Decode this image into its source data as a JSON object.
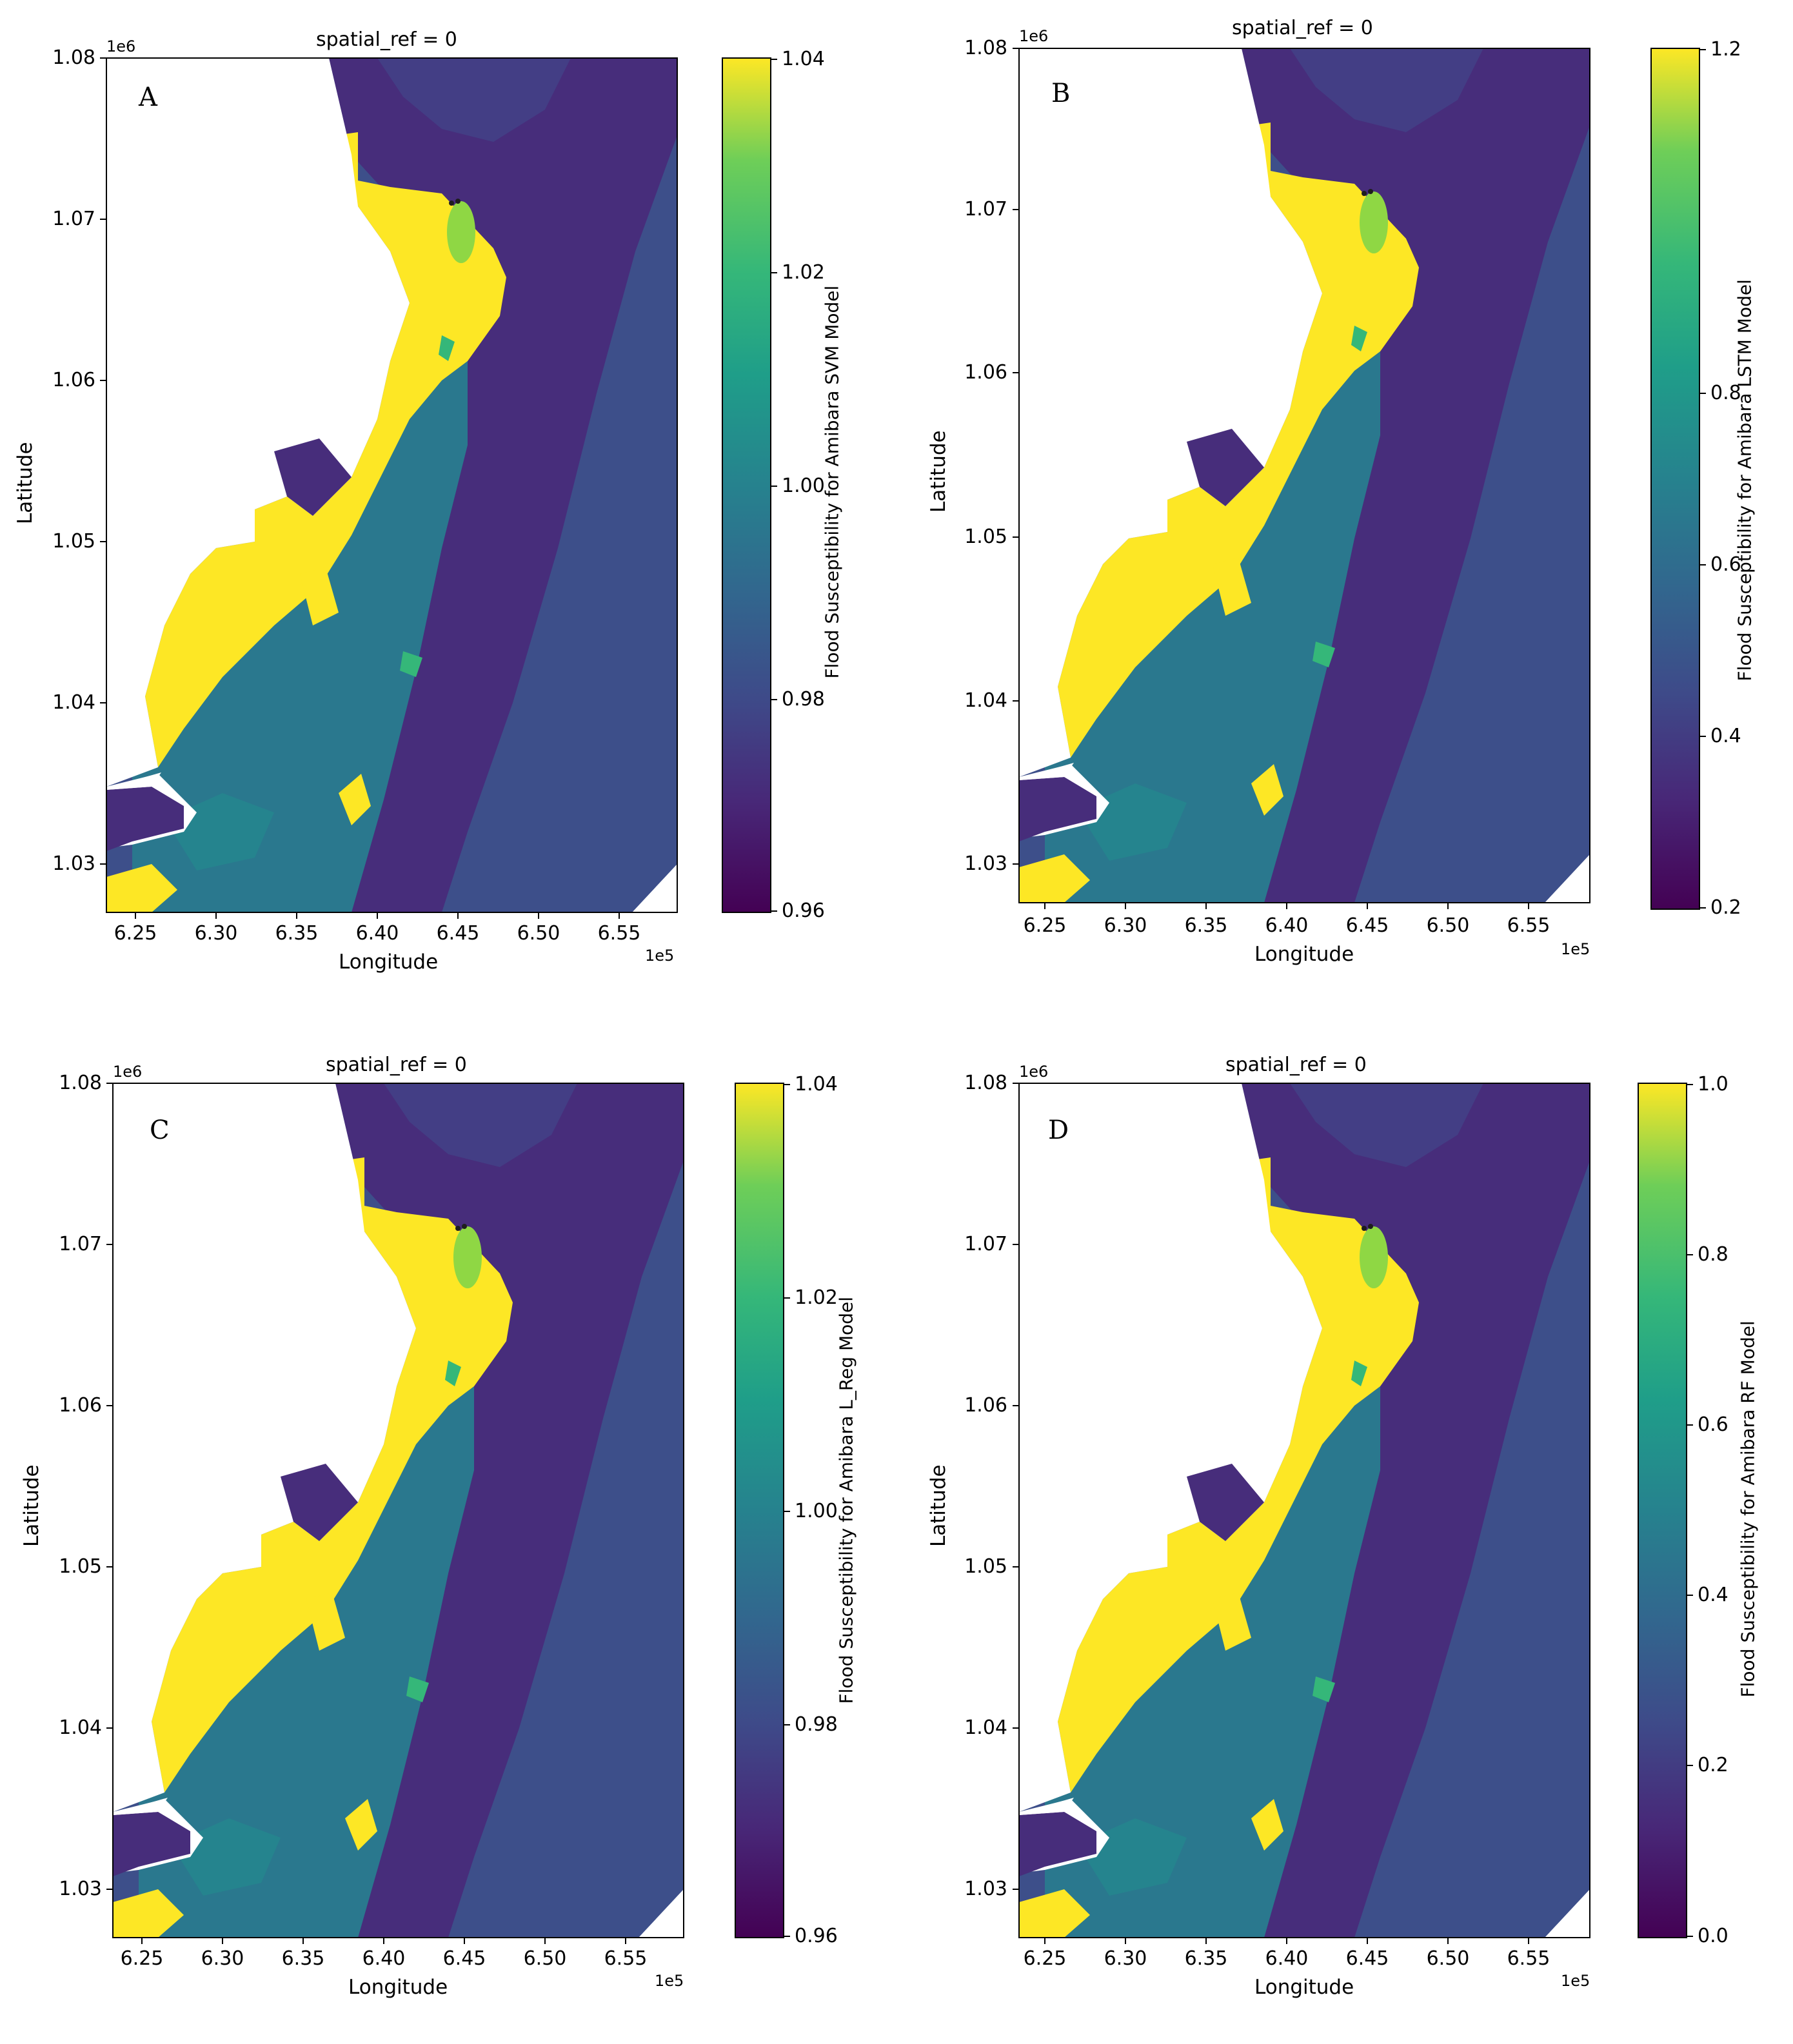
{
  "panels": [
    {
      "letter": "A",
      "title": "spatial_ref = 0",
      "y_exponent": "1e6",
      "x_exponent": "1e5",
      "xlabel": "Longitude",
      "ylabel": "Latitude",
      "y_ticks": [
        "1.08",
        "1.07",
        "1.06",
        "1.05",
        "1.04",
        "1.03"
      ],
      "x_ticks": [
        "6.25",
        "6.30",
        "6.35",
        "6.40",
        "6.45",
        "6.50",
        "6.55"
      ],
      "colorbar_label": "Flood Susceptibility for Amibara SVM Model",
      "colorbar_ticks": [
        "1.04",
        "1.02",
        "1.00",
        "0.98",
        "0.96"
      ],
      "colorbar_range": [
        0.96,
        1.04
      ]
    },
    {
      "letter": "B",
      "title": "spatial_ref = 0",
      "y_exponent": "1e6",
      "x_exponent": "1e5",
      "xlabel": "Longitude",
      "ylabel": "Latitude",
      "y_ticks": [
        "1.08",
        "1.07",
        "1.06",
        "1.05",
        "1.04",
        "1.03"
      ],
      "x_ticks": [
        "6.25",
        "6.30",
        "6.35",
        "6.40",
        "6.45",
        "6.50",
        "6.55"
      ],
      "colorbar_label": "Flood Susceptibility for Amibara LSTM Model",
      "colorbar_ticks": [
        "1.2",
        "0.8",
        "0.6",
        "0.4",
        "0.2"
      ],
      "colorbar_range": [
        0.2,
        1.2
      ]
    },
    {
      "letter": "C",
      "title": "spatial_ref = 0",
      "y_exponent": "1e6",
      "x_exponent": "1e5",
      "xlabel": "Longitude",
      "ylabel": "Latitude",
      "y_ticks": [
        "1.08",
        "1.07",
        "1.06",
        "1.05",
        "1.04",
        "1.03"
      ],
      "x_ticks": [
        "6.25",
        "6.30",
        "6.35",
        "6.40",
        "6.45",
        "6.50",
        "6.55"
      ],
      "colorbar_label": "Flood Susceptibility for Amibara L_Reg Model",
      "colorbar_ticks": [
        "1.04",
        "1.02",
        "1.00",
        "0.98",
        "0.96"
      ],
      "colorbar_range": [
        0.96,
        1.04
      ]
    },
    {
      "letter": "D",
      "title": "spatial_ref = 0",
      "y_exponent": "1e6",
      "x_exponent": "1e5",
      "xlabel": "Longitude",
      "ylabel": "Latitude",
      "y_ticks": [
        "1.08",
        "1.07",
        "1.06",
        "1.05",
        "1.04",
        "1.03"
      ],
      "x_ticks": [
        "6.25",
        "6.30",
        "6.35",
        "6.40",
        "6.45",
        "6.50",
        "6.55"
      ],
      "colorbar_label": "Flood Susceptibility for Amibara RF Model",
      "colorbar_ticks": [
        "1.0",
        "0.8",
        "0.6",
        "0.4",
        "0.2",
        "0.0"
      ],
      "colorbar_range": [
        0.0,
        1.0
      ]
    }
  ],
  "colors": {
    "high": "#fde725",
    "mid_high": "#5ec962",
    "mid": "#21918c",
    "mid_low": "#3b528b",
    "low": "#440154",
    "background": "#ffffff"
  },
  "colormap": "viridis"
}
